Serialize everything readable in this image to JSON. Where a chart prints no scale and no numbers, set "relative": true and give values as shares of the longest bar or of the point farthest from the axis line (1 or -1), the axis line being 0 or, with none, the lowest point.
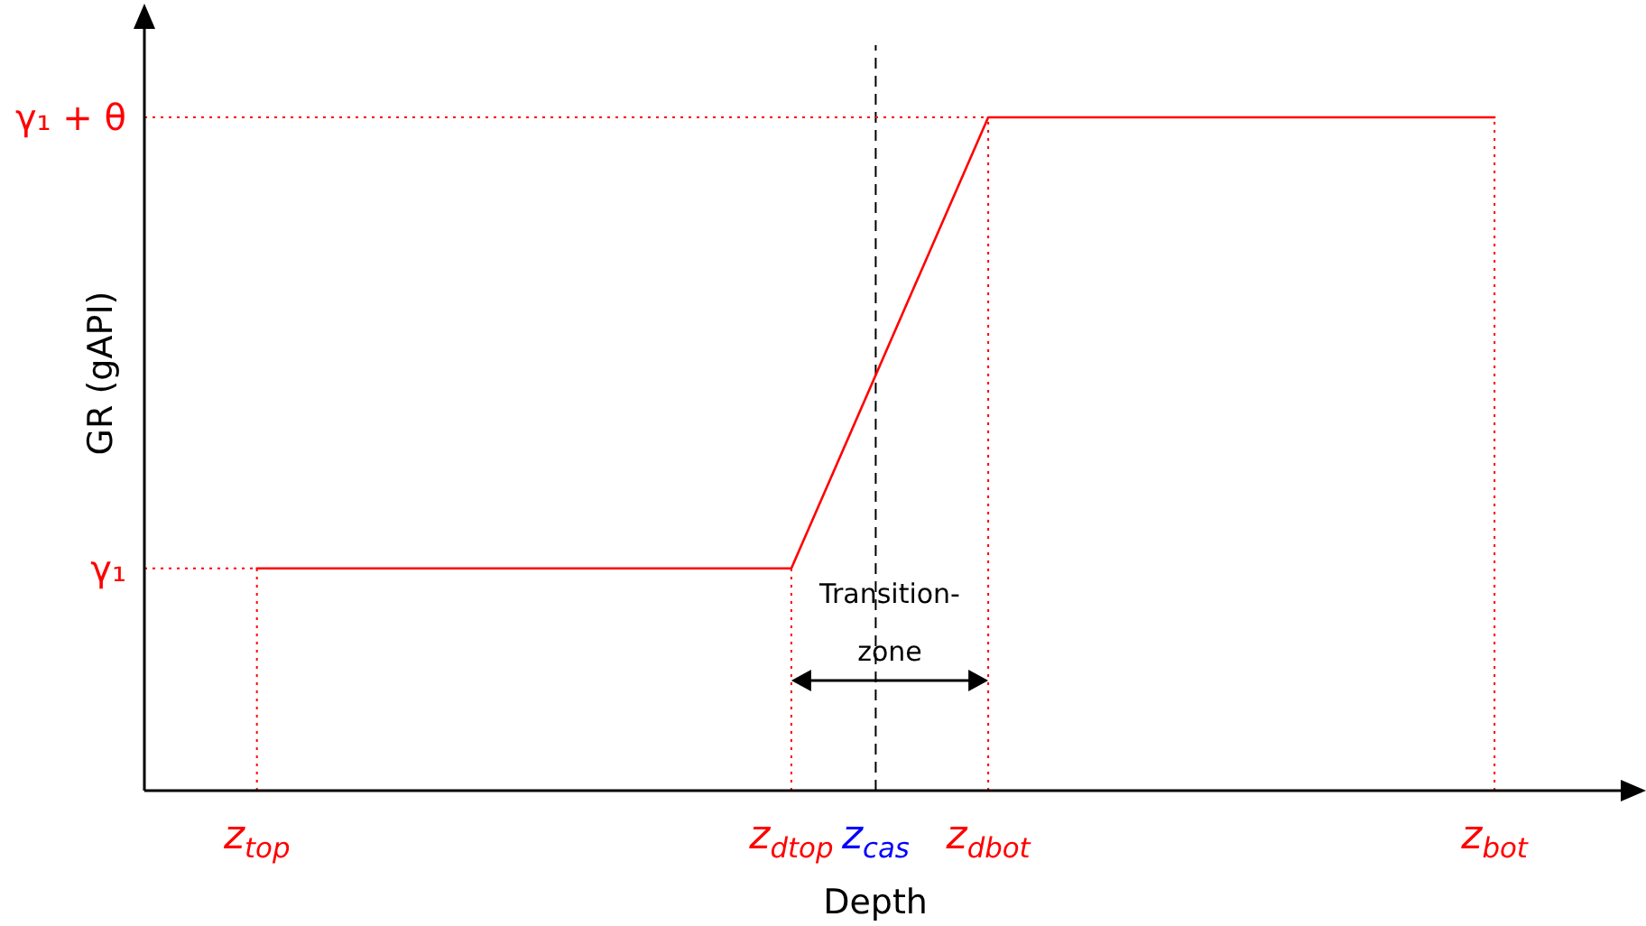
{
  "chart_data": {
    "type": "line",
    "xlabel": "Depth",
    "ylabel": "GR (gAPI)",
    "relative": true,
    "categories": [
      null,
      null,
      null,
      null,
      "z$_{top}$",
      null,
      null,
      null,
      null,
      null,
      null,
      null,
      null,
      null,
      null,
      null,
      null,
      null,
      null,
      null,
      null,
      null,
      null,
      "z$_{dtop}$",
      null,
      null,
      "z$_{cas}$",
      null,
      null,
      null,
      "z$_{dbot}$",
      null,
      null,
      null,
      null,
      null,
      null,
      null,
      null,
      null,
      null,
      null,
      null,
      null,
      null,
      null,
      null,
      null,
      "z$_{bot}$",
      null,
      null,
      null,
      null,
      null
    ],
    "series": [
      {
        "color": "#ff0000",
        "x": [
          "z$_{top}$",
          "z$_{dtop}$",
          "z$_{dbot}$",
          "z$_{bot}$"
        ],
        "values": [
          0.33,
          0.33,
          1,
          1
        ]
      }
    ],
    "ref_lines": [
      {
        "axis": "x",
        "value": "z$_{cas}$",
        "color": "#000000",
        "line_style": "dashed"
      },
      {
        "axis": "y",
        "value": 0.33,
        "label": "γ₁",
        "color": "#ff0000",
        "line_style": "dotted"
      },
      {
        "axis": "y",
        "value": 1,
        "label": "γ₁ + θ",
        "color": "#ff0000",
        "line_style": "dotted"
      },
      {
        "axis": "x",
        "value": "z$_{top}$",
        "color": "#ff0000",
        "line_style": "dotted"
      },
      {
        "axis": "x",
        "value": "z$_{dtop}$",
        "color": "#ff0000",
        "line_style": "dotted"
      },
      {
        "axis": "x",
        "value": "z$_{dbot}$",
        "color": "#ff0000",
        "line_style": "dotted"
      },
      {
        "axis": "x",
        "value": "z$_{bot}$",
        "color": "#ff0000",
        "line_style": "dotted"
      }
    ],
    "annotations": [
      "Transition-zone"
    ]
  }
}
